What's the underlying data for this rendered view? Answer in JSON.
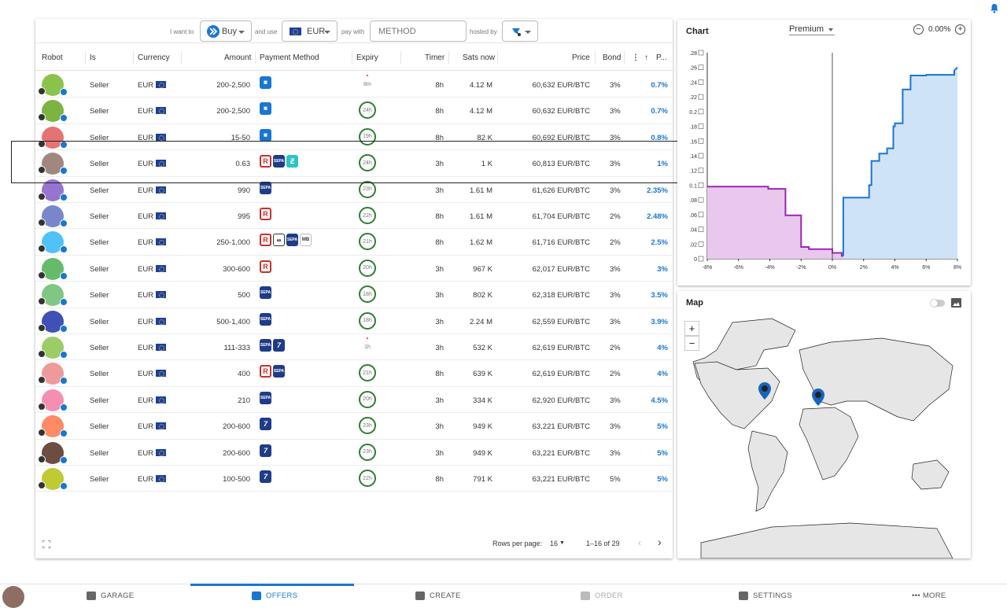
{
  "filters": {
    "i_want_to": "I want to",
    "action": "Buy",
    "and_use": "and use",
    "currency": "EUR",
    "pay_with": "pay with",
    "method_placeholder": "METHOD",
    "hosted_by": "hosted by"
  },
  "table": {
    "headers": [
      "Robot",
      "Is",
      "Currency",
      "Amount",
      "Payment Method",
      "Expiry",
      "Timer",
      "Sats now",
      "Price",
      "Bond",
      "P..."
    ],
    "rows": [
      {
        "is": "Seller",
        "currency": "EUR",
        "amount": "200-2,500",
        "methods": [
          "tile"
        ],
        "expiry": "8m",
        "expiry_low": true,
        "timer": "8h",
        "sats": "4.12 M",
        "price": "60,632 EUR/BTC",
        "bond": "3%",
        "premium": "0.7%",
        "avatar": "#8bc34a"
      },
      {
        "is": "Seller",
        "currency": "EUR",
        "amount": "200-2,500",
        "methods": [
          "tile"
        ],
        "expiry": "24h",
        "expiry_low": false,
        "timer": "8h",
        "sats": "4.12 M",
        "price": "60,632 EUR/BTC",
        "bond": "3%",
        "premium": "0.7%",
        "avatar": "#7cb342"
      },
      {
        "is": "Seller",
        "currency": "EUR",
        "amount": "15-50",
        "methods": [
          "tile"
        ],
        "expiry": "19h",
        "expiry_low": false,
        "timer": "8h",
        "sats": "82 K",
        "price": "60,692 EUR/BTC",
        "bond": "3%",
        "premium": "0.8%",
        "avatar": "#e57373"
      },
      {
        "is": "Seller",
        "currency": "EUR",
        "amount": "0.63",
        "methods": [
          "revolut",
          "sepa",
          "bizum"
        ],
        "expiry": "24h",
        "expiry_low": false,
        "timer": "3h",
        "sats": "1 K",
        "price": "60,813 EUR/BTC",
        "bond": "3%",
        "premium": "1%",
        "avatar": "#a1887f"
      },
      {
        "is": "Seller",
        "currency": "EUR",
        "amount": "990",
        "methods": [
          "sepa"
        ],
        "expiry": "23h",
        "expiry_low": false,
        "timer": "3h",
        "sats": "1.61 M",
        "price": "61,626 EUR/BTC",
        "bond": "3%",
        "premium": "2.35%",
        "avatar": "#9575cd"
      },
      {
        "is": "Seller",
        "currency": "EUR",
        "amount": "995",
        "methods": [
          "revolut"
        ],
        "expiry": "22h",
        "expiry_low": false,
        "timer": "8h",
        "sats": "1.61 M",
        "price": "61,704 EUR/BTC",
        "bond": "2%",
        "premium": "2.48%",
        "avatar": "#7986cb"
      },
      {
        "is": "Seller",
        "currency": "EUR",
        "amount": "250-1,000",
        "methods": [
          "revolut",
          "link",
          "sepa",
          "mb"
        ],
        "expiry": "21h",
        "expiry_low": false,
        "timer": "8h",
        "sats": "1.62 M",
        "price": "61,716 EUR/BTC",
        "bond": "2%",
        "premium": "2.5%",
        "avatar": "#4fc3f7"
      },
      {
        "is": "Seller",
        "currency": "EUR",
        "amount": "300-600",
        "methods": [
          "revolut"
        ],
        "expiry": "20h",
        "expiry_low": false,
        "timer": "3h",
        "sats": "967 K",
        "price": "62,017 EUR/BTC",
        "bond": "3%",
        "premium": "3%",
        "avatar": "#66bb6a"
      },
      {
        "is": "Seller",
        "currency": "EUR",
        "amount": "500",
        "methods": [
          "sepa"
        ],
        "expiry": "18h",
        "expiry_low": false,
        "timer": "3h",
        "sats": "802 K",
        "price": "62,318 EUR/BTC",
        "bond": "3%",
        "premium": "3.5%",
        "avatar": "#81c784"
      },
      {
        "is": "Seller",
        "currency": "EUR",
        "amount": "500-1,400",
        "methods": [
          "sepa"
        ],
        "expiry": "18h",
        "expiry_low": false,
        "timer": "3h",
        "sats": "2.24 M",
        "price": "62,559 EUR/BTC",
        "bond": "3%",
        "premium": "3.9%",
        "avatar": "#3f51b5"
      },
      {
        "is": "Seller",
        "currency": "EUR",
        "amount": "111-333",
        "methods": [
          "sepa",
          "instant"
        ],
        "expiry": "1h",
        "expiry_low": true,
        "timer": "3h",
        "sats": "532 K",
        "price": "62,619 EUR/BTC",
        "bond": "2%",
        "premium": "4%",
        "avatar": "#9ccc65"
      },
      {
        "is": "Seller",
        "currency": "EUR",
        "amount": "400",
        "methods": [
          "revolut",
          "sepa"
        ],
        "expiry": "21h",
        "expiry_low": false,
        "timer": "8h",
        "sats": "639 K",
        "price": "62,619 EUR/BTC",
        "bond": "2%",
        "premium": "4%",
        "avatar": "#ef9a9a"
      },
      {
        "is": "Seller",
        "currency": "EUR",
        "amount": "210",
        "methods": [
          "sepa"
        ],
        "expiry": "20h",
        "expiry_low": false,
        "timer": "3h",
        "sats": "334 K",
        "price": "62,920 EUR/BTC",
        "bond": "3%",
        "premium": "4.5%",
        "avatar": "#f48fb1"
      },
      {
        "is": "Seller",
        "currency": "EUR",
        "amount": "200-600",
        "methods": [
          "instant"
        ],
        "expiry": "23h",
        "expiry_low": false,
        "timer": "3h",
        "sats": "949 K",
        "price": "63,221 EUR/BTC",
        "bond": "3%",
        "premium": "5%",
        "avatar": "#ff8a65"
      },
      {
        "is": "Seller",
        "currency": "EUR",
        "amount": "200-600",
        "methods": [
          "instant"
        ],
        "expiry": "23h",
        "expiry_low": false,
        "timer": "3h",
        "sats": "949 K",
        "price": "63,221 EUR/BTC",
        "bond": "3%",
        "premium": "5%",
        "avatar": "#6d4c41"
      },
      {
        "is": "Seller",
        "currency": "EUR",
        "amount": "100-500",
        "methods": [
          "instant"
        ],
        "expiry": "22h",
        "expiry_low": false,
        "timer": "8h",
        "sats": "791 K",
        "price": "63,221 EUR/BTC",
        "bond": "5%",
        "premium": "5%",
        "avatar": "#c0ca33"
      }
    ],
    "rows_per_page_label": "Rows per page:",
    "rows_per_page": "16",
    "pagination": "1–16 of 29"
  },
  "chart": {
    "title": "Chart",
    "premium_select": "Premium",
    "zoom_value": "0.00%",
    "y_ticks": [
      ".28",
      ".26",
      ".24",
      ".22",
      "0.2",
      ".18",
      ".16",
      ".14",
      ".12",
      "0.1",
      ".08",
      ".06",
      ".04",
      ".02",
      "0"
    ],
    "x_ticks": [
      "-8%",
      "-6%",
      "-4%",
      "-2%",
      "0%",
      "2%",
      "4%",
      "6%",
      "8%"
    ],
    "colors": {
      "buy": "#9c27b0",
      "buy_fill": "#e8c8ec",
      "sell": "#1976d2",
      "sell_fill": "#cfe3f7"
    }
  },
  "chart_data": {
    "type": "area",
    "xlabel": "",
    "ylabel": "",
    "xlim": [
      -8,
      8
    ],
    "ylim": [
      0,
      0.28
    ],
    "series": [
      {
        "x": [
          -8,
          -4.1,
          -4.1,
          -3,
          -3,
          -2,
          -2,
          -1.5,
          -1.5,
          0,
          0,
          0.6,
          0.6,
          1.5
        ],
        "values": [
          0.098,
          0.098,
          0.095,
          0.095,
          0.059,
          0.059,
          0.016,
          0.016,
          0.013,
          0.013,
          0.008,
          0.008,
          0.004,
          0.002
        ]
      },
      {
        "x": [
          0.7,
          0.7,
          2.35,
          2.35,
          2.5,
          2.5,
          3,
          3,
          3.5,
          3.5,
          3.9,
          3.9,
          4,
          4,
          4.5,
          4.5,
          5,
          5,
          6,
          6,
          7.8,
          7.8,
          8
        ],
        "values": [
          0.004,
          0.083,
          0.083,
          0.1,
          0.1,
          0.133,
          0.133,
          0.143,
          0.143,
          0.15,
          0.15,
          0.18,
          0.18,
          0.184,
          0.184,
          0.23,
          0.23,
          0.249,
          0.249,
          0.25,
          0.25,
          0.256,
          0.26
        ]
      }
    ]
  },
  "map": {
    "title": "Map",
    "zoom_in": "+",
    "zoom_out": "−"
  },
  "nav": {
    "garage": "GARAGE",
    "offers": "OFFERS",
    "create": "CREATE",
    "order": "ORDER",
    "settings": "SETTINGS",
    "more": "••• MORE"
  }
}
